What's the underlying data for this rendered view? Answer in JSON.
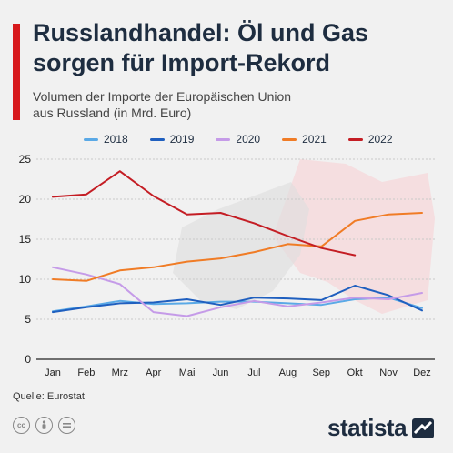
{
  "header": {
    "title_line1": "Russlandhandel: Öl und Gas",
    "title_line2": "sorgen für Import-Rekord",
    "subtitle_line1": "Volumen der Importe der Europäischen Union",
    "subtitle_line2": "aus Russland (in Mrd. Euro)"
  },
  "footer": {
    "source": "Quelle: Eurostat",
    "brand": "statista",
    "cc_icons": [
      "cc-icon",
      "person-icon",
      "equals-icon"
    ]
  },
  "chart_data": {
    "type": "line",
    "categories": [
      "Jan",
      "Feb",
      "Mrz",
      "Apr",
      "Mai",
      "Jun",
      "Jul",
      "Aug",
      "Sep",
      "Okt",
      "Nov",
      "Dez"
    ],
    "ylim": [
      0,
      25
    ],
    "yticks": [
      0,
      5,
      10,
      15,
      20,
      25
    ],
    "grid": true,
    "legend_position": "top",
    "series": [
      {
        "name": "2018",
        "color": "#5aa9e6",
        "values": [
          6.0,
          6.6,
          7.3,
          6.9,
          7.0,
          7.2,
          7.2,
          7.0,
          6.8,
          7.5,
          7.7,
          6.4
        ]
      },
      {
        "name": "2019",
        "color": "#1f5fbf",
        "values": [
          5.9,
          6.5,
          7.0,
          7.1,
          7.5,
          6.8,
          7.7,
          7.6,
          7.4,
          9.2,
          8.0,
          6.1
        ]
      },
      {
        "name": "2020",
        "color": "#c59be8",
        "values": [
          11.5,
          10.6,
          9.4,
          5.9,
          5.4,
          6.5,
          7.3,
          6.6,
          7.1,
          7.7,
          7.5,
          8.3
        ]
      },
      {
        "name": "2021",
        "color": "#f07c26",
        "values": [
          10.0,
          9.8,
          11.1,
          11.5,
          12.2,
          12.6,
          13.4,
          14.4,
          14.1,
          17.3,
          18.1,
          18.3
        ]
      },
      {
        "name": "2022",
        "color": "#c41d24",
        "values": [
          20.3,
          20.6,
          23.5,
          20.4,
          18.1,
          18.3,
          17.0,
          15.4,
          13.9,
          13.0,
          null,
          null
        ]
      }
    ]
  }
}
